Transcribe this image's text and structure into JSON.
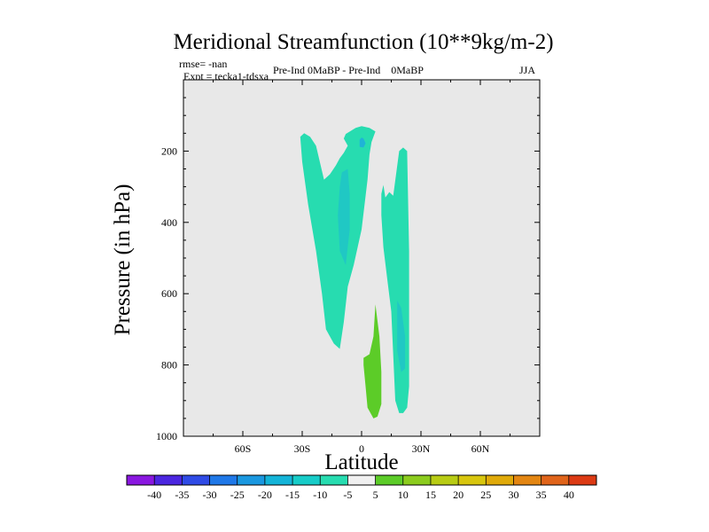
{
  "chart_data": {
    "type": "contour",
    "title": "Meridional Streamfunction (10**9kg/m-2)",
    "stats_text": "rmse= -nan",
    "experiment_text": "Expt = tecka1-tdsxa",
    "comparison_text": "Pre-Ind 0MaBP - Pre-Ind    0MaBP",
    "season": "JJA",
    "xlabel": "Latitude",
    "ylabel": "Pressure (in hPa)",
    "xlim": [
      -90,
      90
    ],
    "ylim": [
      1000,
      0
    ],
    "x_ticks": [
      {
        "value": -60,
        "label": "60S"
      },
      {
        "value": -30,
        "label": "30S"
      },
      {
        "value": 0,
        "label": "0"
      },
      {
        "value": 30,
        "label": "30N"
      },
      {
        "value": 60,
        "label": "60N"
      }
    ],
    "y_ticks": [
      {
        "value": 200,
        "label": "200"
      },
      {
        "value": 400,
        "label": "400"
      },
      {
        "value": 600,
        "label": "600"
      },
      {
        "value": 800,
        "label": "800"
      },
      {
        "value": 1000,
        "label": "1000"
      }
    ],
    "colorbar": {
      "labels": [
        "-40",
        "-35",
        "-30",
        "-25",
        "-20",
        "-15",
        "-10",
        "-5",
        "5",
        "10",
        "15",
        "20",
        "25",
        "30",
        "35",
        "40"
      ],
      "colors": [
        "#8a17e0",
        "#4b26e0",
        "#2f4be6",
        "#1f78e8",
        "#1a98e0",
        "#14b4d8",
        "#17ccc8",
        "#27dcb0",
        "#f0f0f0",
        "#5ccc28",
        "#8ccc1e",
        "#b8cc14",
        "#d8c60e",
        "#e0aa0a",
        "#e38612",
        "#e0641a",
        "#dc3a14"
      ]
    },
    "regions": [
      {
        "name": "southern-negative-cell",
        "interval": "-10 to -5",
        "color": "#27dcb0",
        "points": [
          [
            -29,
            150
          ],
          [
            -26,
            160
          ],
          [
            -23,
            185
          ],
          [
            -19,
            280
          ],
          [
            -16,
            265
          ],
          [
            -13,
            240
          ],
          [
            -11,
            220
          ],
          [
            -9,
            205
          ],
          [
            -7,
            185
          ],
          [
            -9,
            165
          ],
          [
            -8,
            152
          ],
          [
            -3,
            135
          ],
          [
            0,
            130
          ],
          [
            4,
            135
          ],
          [
            7,
            145
          ],
          [
            5,
            175
          ],
          [
            4,
            210
          ],
          [
            3,
            280
          ],
          [
            0,
            420
          ],
          [
            -4,
            520
          ],
          [
            -7,
            580
          ],
          [
            -9,
            680
          ],
          [
            -11,
            755
          ],
          [
            -14,
            740
          ],
          [
            -18,
            700
          ],
          [
            -20,
            600
          ],
          [
            -23,
            480
          ],
          [
            -27,
            350
          ],
          [
            -30,
            230
          ],
          [
            -31,
            160
          ]
        ]
      },
      {
        "name": "southern-core",
        "interval": "-15 to -10",
        "color": "#20c8c4",
        "points": [
          [
            -10,
            260
          ],
          [
            -7,
            250
          ],
          [
            -6,
            320
          ],
          [
            -6,
            420
          ],
          [
            -8,
            520
          ],
          [
            -11,
            480
          ],
          [
            -12,
            380
          ],
          [
            -11,
            300
          ]
        ]
      },
      {
        "name": "upper-core",
        "interval": "-15 to -10",
        "color": "#1fb4d6",
        "points": [
          [
            -1,
            168
          ],
          [
            0,
            162
          ],
          [
            1,
            165
          ],
          [
            2,
            178
          ],
          [
            1,
            190
          ],
          [
            -1,
            188
          ]
        ]
      },
      {
        "name": "northern-negative-cell",
        "interval": "-10 to -5",
        "color": "#27dcb0",
        "points": [
          [
            10,
            320
          ],
          [
            11,
            295
          ],
          [
            12,
            330
          ],
          [
            14,
            315
          ],
          [
            16,
            325
          ],
          [
            19,
            200
          ],
          [
            21,
            190
          ],
          [
            23,
            200
          ],
          [
            24,
            480
          ],
          [
            24,
            700
          ],
          [
            24,
            860
          ],
          [
            23,
            920
          ],
          [
            21,
            935
          ],
          [
            19,
            935
          ],
          [
            17,
            900
          ],
          [
            15,
            650
          ],
          [
            13,
            560
          ],
          [
            11,
            470
          ],
          [
            10,
            380
          ]
        ]
      },
      {
        "name": "northern-core",
        "interval": "-15 to -10",
        "color": "#20c8c4",
        "points": [
          [
            18,
            620
          ],
          [
            20,
            640
          ],
          [
            22,
            720
          ],
          [
            22,
            810
          ],
          [
            20,
            820
          ],
          [
            18,
            760
          ]
        ]
      },
      {
        "name": "positive-cell",
        "interval": "5 to 10",
        "color": "#5ccc28",
        "points": [
          [
            7,
            630
          ],
          [
            9,
            720
          ],
          [
            10,
            820
          ],
          [
            10,
            910
          ],
          [
            8,
            945
          ],
          [
            6,
            950
          ],
          [
            3,
            920
          ],
          [
            2,
            860
          ],
          [
            1,
            800
          ],
          [
            1,
            780
          ],
          [
            4,
            770
          ],
          [
            6,
            720
          ]
        ]
      }
    ]
  }
}
